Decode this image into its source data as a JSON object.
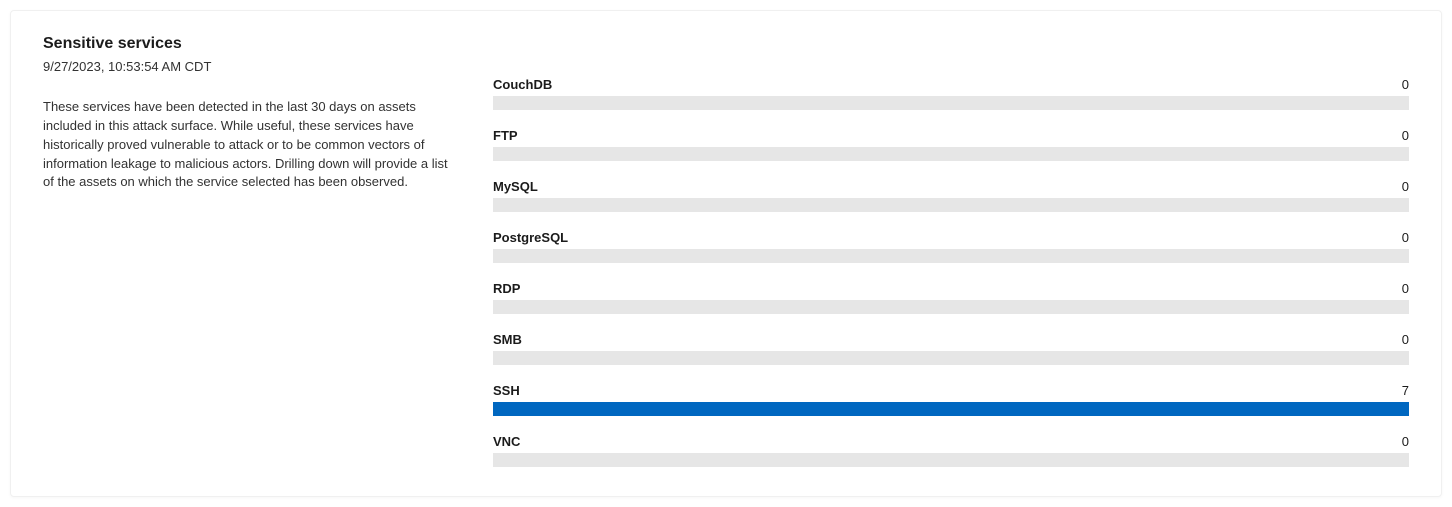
{
  "header": {
    "title": "Sensitive services",
    "timestamp": "9/27/2023, 10:53:54 AM CDT",
    "description": "These services have been detected in the last 30 days on assets included in this attack surface. While useful, these services have historically proved vulnerable to attack or to be common vectors of information leakage to malicious actors. Drilling down will provide a list of the assets on which the service selected has been observed."
  },
  "chart": {
    "type": "bar",
    "max_value": 7,
    "track_color": "#e6e6e6",
    "fill_color": "#0067c0",
    "services": [
      {
        "name": "CouchDB",
        "count": 0,
        "fill_percent": 0
      },
      {
        "name": "FTP",
        "count": 0,
        "fill_percent": 0
      },
      {
        "name": "MySQL",
        "count": 0,
        "fill_percent": 0
      },
      {
        "name": "PostgreSQL",
        "count": 0,
        "fill_percent": 0
      },
      {
        "name": "RDP",
        "count": 0,
        "fill_percent": 0
      },
      {
        "name": "SMB",
        "count": 0,
        "fill_percent": 0
      },
      {
        "name": "SSH",
        "count": 7,
        "fill_percent": 100
      },
      {
        "name": "VNC",
        "count": 0,
        "fill_percent": 0
      }
    ]
  },
  "colors": {
    "card_bg": "#ffffff",
    "text_primary": "#1b1b1b",
    "text_secondary": "#323232",
    "bar_track": "#e6e6e6",
    "bar_fill": "#0067c0"
  }
}
